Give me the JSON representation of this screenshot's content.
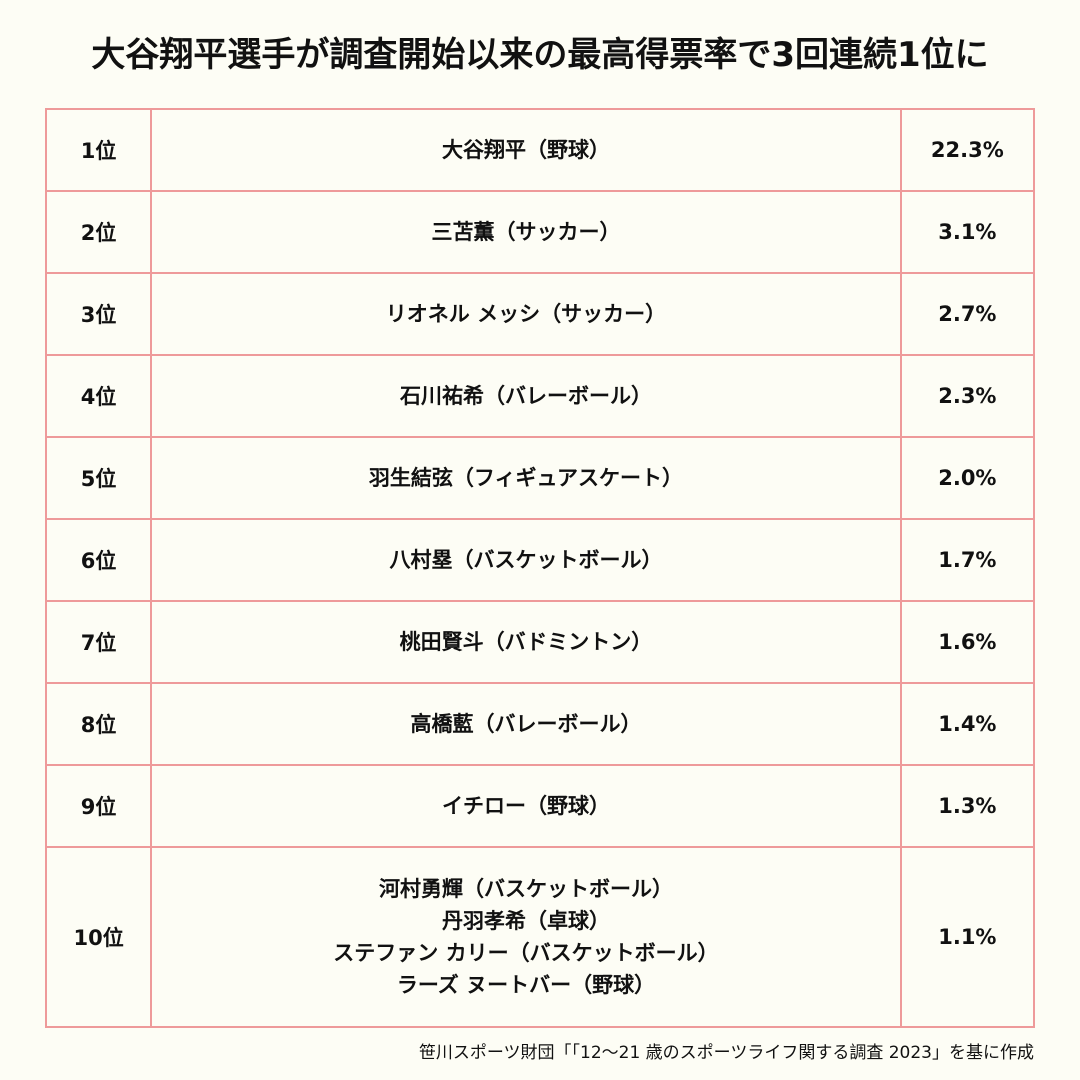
{
  "title": "大谷翔平選手が調査開始以来の最高得票率で3回連続1位に",
  "rows": [
    {
      "rank": "1位",
      "names": [
        "大谷翔平（野球）"
      ],
      "percent": "22.3%"
    },
    {
      "rank": "2位",
      "names": [
        "三苫薫（サッカー）"
      ],
      "percent": "3.1%"
    },
    {
      "rank": "3位",
      "names": [
        "リオネル メッシ（サッカー）"
      ],
      "percent": "2.7%"
    },
    {
      "rank": "4位",
      "names": [
        "石川祐希（バレーボール）"
      ],
      "percent": "2.3%"
    },
    {
      "rank": "5位",
      "names": [
        "羽生結弦（フィギュアスケート）"
      ],
      "percent": "2.0%"
    },
    {
      "rank": "6位",
      "names": [
        "八村塁（バスケットボール）"
      ],
      "percent": "1.7%"
    },
    {
      "rank": "7位",
      "names": [
        "桃田賢斗（バドミントン）"
      ],
      "percent": "1.6%"
    },
    {
      "rank": "8位",
      "names": [
        "高橋藍（バレーボール）"
      ],
      "percent": "1.4%"
    },
    {
      "rank": "9位",
      "names": [
        "イチロー（野球）"
      ],
      "percent": "1.3%"
    },
    {
      "rank": "10位",
      "names": [
        "河村勇輝（バスケットボール）",
        "丹羽孝希（卓球）",
        "ステファン カリー（バスケットボール）",
        "ラーズ ヌートバー（野球）"
      ],
      "percent": "1.1%"
    }
  ],
  "source": "笹川スポーツ財団「「12〜21 歳のスポーツライフ関する調査 2023」を基に作成",
  "colors": {
    "background": "#fdfdf5",
    "border": "#ee9a9a",
    "text": "#111111"
  }
}
